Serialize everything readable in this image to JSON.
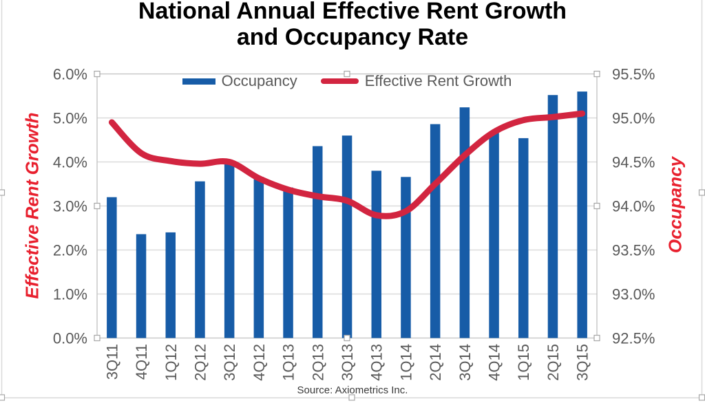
{
  "header": {
    "title_line1": "National Annual Effective Rent Growth",
    "title_line2": "and Occupancy Rate"
  },
  "footer": {
    "source": "Source: Axiometrics Inc."
  },
  "chart_data": {
    "type": "combo",
    "title": "National Annual Effective Rent Growth and Occupancy Rate",
    "categories": [
      "3Q11",
      "4Q11",
      "1Q12",
      "2Q12",
      "3Q12",
      "4Q12",
      "1Q13",
      "2Q13",
      "3Q13",
      "4Q13",
      "1Q14",
      "2Q14",
      "3Q14",
      "4Q14",
      "1Q15",
      "2Q15",
      "3Q15"
    ],
    "series": [
      {
        "name": "Occupancy",
        "type": "bar",
        "axis": "right",
        "unit": "%",
        "values": [
          94.1,
          93.68,
          93.7,
          94.28,
          94.5,
          94.33,
          94.21,
          94.68,
          94.8,
          94.4,
          94.33,
          94.93,
          95.12,
          94.83,
          94.77,
          95.26,
          95.3
        ]
      },
      {
        "name": "Effective Rent Growth",
        "type": "line",
        "axis": "left",
        "unit": "%",
        "values": [
          4.9,
          4.2,
          4.02,
          3.96,
          4.0,
          3.63,
          3.37,
          3.22,
          3.12,
          2.79,
          2.88,
          3.5,
          4.15,
          4.68,
          4.95,
          5.02,
          5.1
        ]
      }
    ],
    "left_axis": {
      "title": "Effective Rent Growth",
      "min": 0.0,
      "max": 6.0,
      "ticks": [
        "6.0%",
        "5.0%",
        "4.0%",
        "3.0%",
        "2.0%",
        "1.0%",
        "0.0%"
      ]
    },
    "right_axis": {
      "title": "Occupancy",
      "min": 92.5,
      "max": 95.5,
      "ticks": [
        "95.5%",
        "95.0%",
        "94.5%",
        "94.0%",
        "93.5%",
        "93.0%",
        "92.5%"
      ]
    },
    "grid": true,
    "legend_position": "top-inside",
    "colors": {
      "bar": "#175CA7",
      "line": "#D22540",
      "axis_title": "#E8202E",
      "tick_label": "#595959",
      "title": "#000000",
      "source": "#3A3A3A",
      "gridline": "#D4D4D4",
      "frame": "#BFBFBF",
      "outer_border": "#D9D9D9",
      "handle_border": "#A6A6A6",
      "handle_fill": "#FFFFFF"
    }
  }
}
